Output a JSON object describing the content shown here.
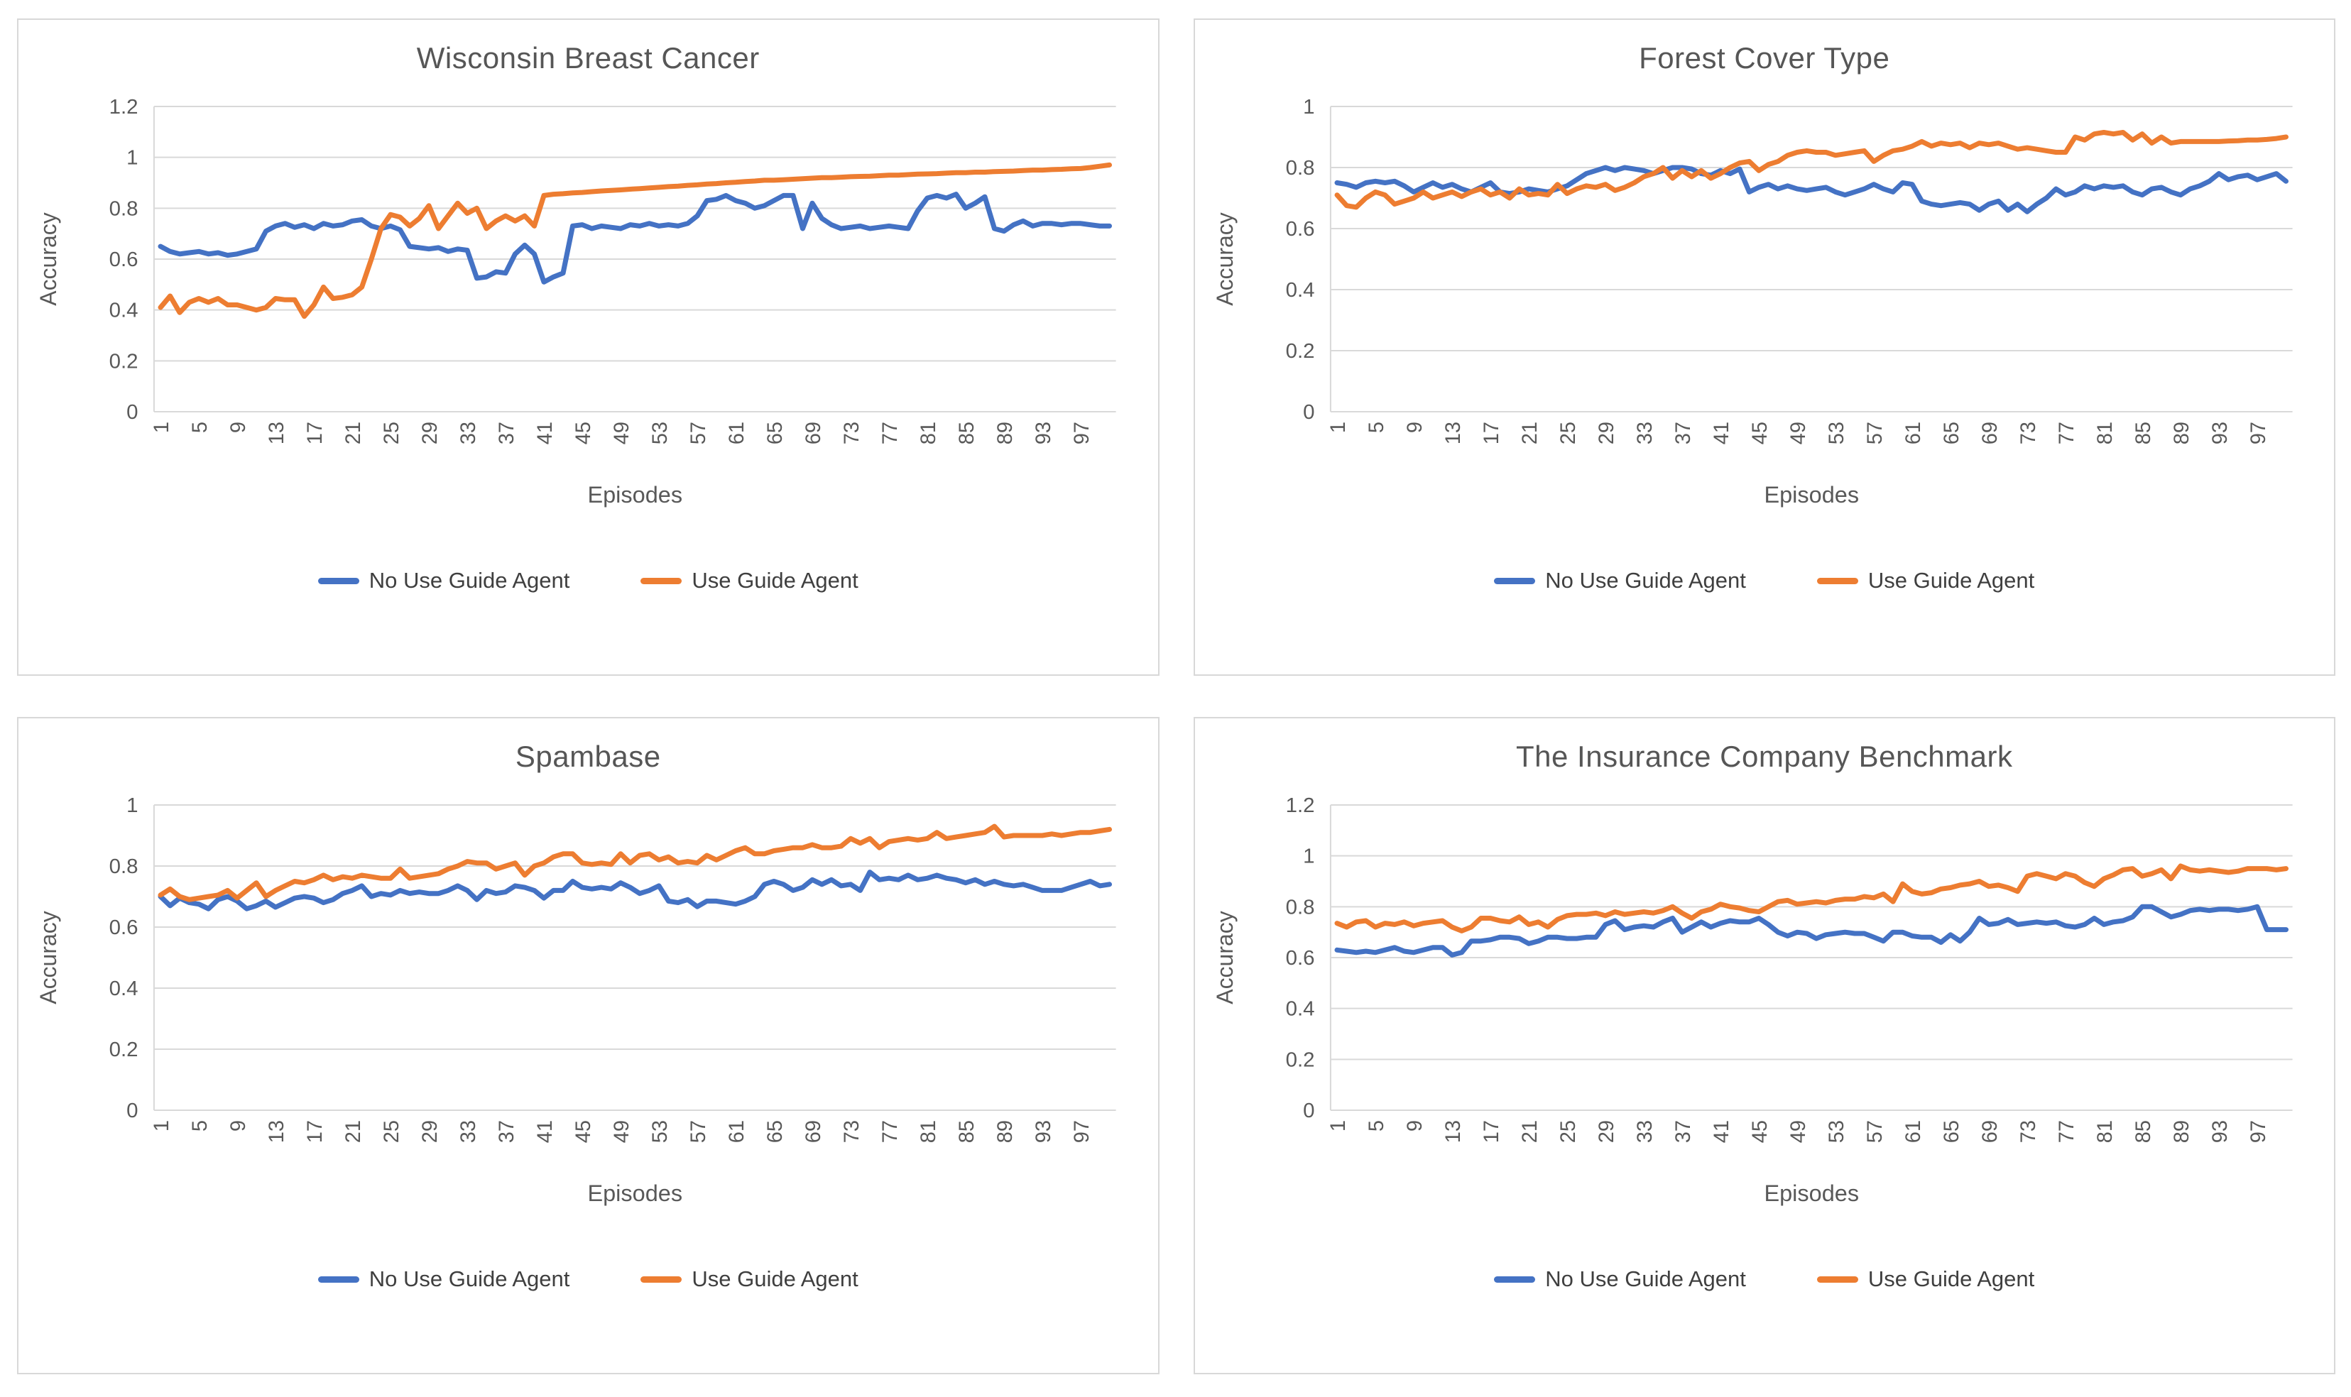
{
  "page": {
    "background": "#ffffff",
    "layout": "2x2-grid-of-line-charts",
    "accent_blue": "#4472C4",
    "accent_orange": "#ED7D31",
    "gridline_color": "#d9d9d9",
    "axis_text_color": "#595959"
  },
  "chart_data": [
    {
      "type": "line",
      "title": "Wisconsin Breast Cancer",
      "xlabel": "Episodes",
      "ylabel": "Accuracy",
      "ylim": [
        0,
        1.2
      ],
      "y_ticks": [
        "1.2",
        "1",
        "0.8",
        "0.6",
        "0.4",
        "0.2",
        "0"
      ],
      "x_ticks": [
        1,
        5,
        9,
        13,
        17,
        21,
        25,
        29,
        33,
        37,
        41,
        45,
        49,
        53,
        57,
        61,
        65,
        69,
        73,
        77,
        81,
        85,
        89,
        93,
        97
      ],
      "x_start": 1,
      "x_step": 1,
      "n_points": 100,
      "grid": true,
      "legend_position": "bottom",
      "series": [
        {
          "name": "No Use Guide Agent",
          "color": "#4472C4",
          "values": [
            0.65,
            0.63,
            0.62,
            0.625,
            0.63,
            0.62,
            0.625,
            0.615,
            0.62,
            0.63,
            0.64,
            0.71,
            0.73,
            0.74,
            0.725,
            0.735,
            0.72,
            0.74,
            0.73,
            0.735,
            0.75,
            0.755,
            0.73,
            0.72,
            0.73,
            0.715,
            0.65,
            0.645,
            0.64,
            0.645,
            0.63,
            0.64,
            0.635,
            0.525,
            0.53,
            0.55,
            0.545,
            0.62,
            0.655,
            0.62,
            0.51,
            0.53,
            0.545,
            0.73,
            0.735,
            0.72,
            0.73,
            0.725,
            0.72,
            0.735,
            0.73,
            0.74,
            0.73,
            0.735,
            0.73,
            0.74,
            0.77,
            0.83,
            0.835,
            0.85,
            0.83,
            0.82,
            0.8,
            0.81,
            0.83,
            0.85,
            0.85,
            0.72,
            0.82,
            0.76,
            0.735,
            0.72,
            0.725,
            0.73,
            0.72,
            0.725,
            0.73,
            0.725,
            0.72,
            0.79,
            0.84,
            0.85,
            0.84,
            0.855,
            0.8,
            0.82,
            0.845,
            0.72,
            0.71,
            0.735,
            0.75,
            0.73,
            0.74,
            0.74,
            0.735,
            0.74,
            0.74,
            0.735,
            0.73,
            0.73
          ]
        },
        {
          "name": "Use Guide Agent",
          "color": "#ED7D31",
          "values": [
            0.41,
            0.455,
            0.39,
            0.43,
            0.445,
            0.43,
            0.445,
            0.42,
            0.42,
            0.41,
            0.4,
            0.41,
            0.445,
            0.44,
            0.44,
            0.375,
            0.42,
            0.49,
            0.445,
            0.45,
            0.46,
            0.49,
            0.6,
            0.72,
            0.775,
            0.765,
            0.73,
            0.76,
            0.81,
            0.72,
            0.77,
            0.82,
            0.78,
            0.8,
            0.72,
            0.75,
            0.77,
            0.75,
            0.77,
            0.73,
            0.85,
            0.855,
            0.857,
            0.86,
            0.862,
            0.865,
            0.868,
            0.87,
            0.872,
            0.875,
            0.877,
            0.88,
            0.882,
            0.885,
            0.887,
            0.89,
            0.892,
            0.895,
            0.897,
            0.9,
            0.902,
            0.905,
            0.907,
            0.91,
            0.91,
            0.912,
            0.914,
            0.916,
            0.918,
            0.92,
            0.92,
            0.922,
            0.924,
            0.925,
            0.926,
            0.928,
            0.93,
            0.93,
            0.932,
            0.934,
            0.935,
            0.936,
            0.938,
            0.94,
            0.94,
            0.942,
            0.942,
            0.944,
            0.945,
            0.946,
            0.948,
            0.95,
            0.95,
            0.952,
            0.953,
            0.955,
            0.956,
            0.96,
            0.965,
            0.97
          ]
        }
      ]
    },
    {
      "type": "line",
      "title": "Forest Cover Type",
      "xlabel": "Episodes",
      "ylabel": "Accuracy",
      "ylim": [
        0,
        1.0
      ],
      "y_ticks": [
        "1",
        "0.8",
        "0.6",
        "0.4",
        "0.2",
        "0"
      ],
      "x_ticks": [
        1,
        5,
        9,
        13,
        17,
        21,
        25,
        29,
        33,
        37,
        41,
        45,
        49,
        53,
        57,
        61,
        65,
        69,
        73,
        77,
        81,
        85,
        89,
        93,
        97
      ],
      "x_start": 1,
      "x_step": 1,
      "n_points": 100,
      "grid": true,
      "legend_position": "bottom",
      "series": [
        {
          "name": "No Use Guide Agent",
          "color": "#4472C4",
          "values": [
            0.75,
            0.745,
            0.735,
            0.75,
            0.755,
            0.75,
            0.755,
            0.74,
            0.72,
            0.735,
            0.75,
            0.735,
            0.745,
            0.73,
            0.72,
            0.735,
            0.75,
            0.72,
            0.715,
            0.72,
            0.73,
            0.725,
            0.72,
            0.73,
            0.74,
            0.76,
            0.78,
            0.79,
            0.8,
            0.79,
            0.8,
            0.795,
            0.79,
            0.78,
            0.79,
            0.8,
            0.8,
            0.795,
            0.78,
            0.775,
            0.79,
            0.78,
            0.795,
            0.72,
            0.735,
            0.745,
            0.73,
            0.74,
            0.73,
            0.725,
            0.73,
            0.735,
            0.72,
            0.71,
            0.72,
            0.73,
            0.745,
            0.73,
            0.72,
            0.75,
            0.745,
            0.69,
            0.68,
            0.675,
            0.68,
            0.685,
            0.68,
            0.66,
            0.68,
            0.69,
            0.66,
            0.68,
            0.655,
            0.68,
            0.7,
            0.73,
            0.71,
            0.72,
            0.74,
            0.73,
            0.74,
            0.735,
            0.74,
            0.72,
            0.71,
            0.73,
            0.735,
            0.72,
            0.71,
            0.73,
            0.74,
            0.755,
            0.78,
            0.76,
            0.77,
            0.775,
            0.76,
            0.77,
            0.78,
            0.755
          ]
        },
        {
          "name": "Use Guide Agent",
          "color": "#ED7D31",
          "values": [
            0.71,
            0.675,
            0.67,
            0.7,
            0.72,
            0.71,
            0.68,
            0.69,
            0.7,
            0.72,
            0.7,
            0.71,
            0.72,
            0.705,
            0.72,
            0.73,
            0.71,
            0.72,
            0.7,
            0.73,
            0.71,
            0.715,
            0.71,
            0.745,
            0.715,
            0.73,
            0.74,
            0.735,
            0.745,
            0.725,
            0.735,
            0.75,
            0.77,
            0.78,
            0.8,
            0.765,
            0.79,
            0.77,
            0.79,
            0.765,
            0.78,
            0.8,
            0.815,
            0.82,
            0.79,
            0.81,
            0.82,
            0.84,
            0.85,
            0.855,
            0.85,
            0.85,
            0.84,
            0.845,
            0.85,
            0.855,
            0.82,
            0.84,
            0.855,
            0.86,
            0.87,
            0.885,
            0.87,
            0.88,
            0.875,
            0.88,
            0.865,
            0.88,
            0.875,
            0.88,
            0.87,
            0.86,
            0.865,
            0.86,
            0.855,
            0.85,
            0.85,
            0.9,
            0.89,
            0.91,
            0.915,
            0.91,
            0.915,
            0.89,
            0.91,
            0.88,
            0.9,
            0.88,
            0.885,
            0.885,
            0.885,
            0.885,
            0.885,
            0.887,
            0.888,
            0.89,
            0.89,
            0.892,
            0.895,
            0.9
          ]
        }
      ]
    },
    {
      "type": "line",
      "title": "Spambase",
      "xlabel": "Episodes",
      "ylabel": "Accuracy",
      "ylim": [
        0,
        1.0
      ],
      "y_ticks": [
        "1",
        "0.8",
        "0.6",
        "0.4",
        "0.2",
        "0"
      ],
      "x_ticks": [
        1,
        5,
        9,
        13,
        17,
        21,
        25,
        29,
        33,
        37,
        41,
        45,
        49,
        53,
        57,
        61,
        65,
        69,
        73,
        77,
        81,
        85,
        89,
        93,
        97
      ],
      "x_start": 1,
      "x_step": 1,
      "n_points": 100,
      "grid": true,
      "legend_position": "bottom",
      "series": [
        {
          "name": "No Use Guide Agent",
          "color": "#4472C4",
          "values": [
            0.7,
            0.67,
            0.695,
            0.68,
            0.675,
            0.66,
            0.69,
            0.7,
            0.685,
            0.66,
            0.67,
            0.685,
            0.665,
            0.68,
            0.695,
            0.7,
            0.695,
            0.68,
            0.69,
            0.71,
            0.72,
            0.735,
            0.7,
            0.71,
            0.705,
            0.72,
            0.71,
            0.715,
            0.71,
            0.71,
            0.72,
            0.735,
            0.72,
            0.69,
            0.72,
            0.71,
            0.715,
            0.735,
            0.73,
            0.72,
            0.695,
            0.72,
            0.72,
            0.75,
            0.73,
            0.725,
            0.73,
            0.725,
            0.745,
            0.73,
            0.71,
            0.72,
            0.735,
            0.685,
            0.68,
            0.69,
            0.667,
            0.685,
            0.685,
            0.68,
            0.675,
            0.685,
            0.7,
            0.74,
            0.75,
            0.74,
            0.72,
            0.73,
            0.755,
            0.74,
            0.755,
            0.735,
            0.74,
            0.72,
            0.78,
            0.755,
            0.76,
            0.755,
            0.77,
            0.755,
            0.76,
            0.77,
            0.76,
            0.755,
            0.745,
            0.755,
            0.74,
            0.75,
            0.74,
            0.735,
            0.74,
            0.73,
            0.72,
            0.72,
            0.72,
            0.73,
            0.74,
            0.75,
            0.735,
            0.74
          ]
        },
        {
          "name": "Use Guide Agent",
          "color": "#ED7D31",
          "values": [
            0.705,
            0.725,
            0.7,
            0.69,
            0.695,
            0.7,
            0.705,
            0.72,
            0.695,
            0.72,
            0.745,
            0.7,
            0.72,
            0.735,
            0.75,
            0.745,
            0.755,
            0.77,
            0.755,
            0.765,
            0.76,
            0.77,
            0.765,
            0.76,
            0.76,
            0.79,
            0.76,
            0.765,
            0.77,
            0.775,
            0.79,
            0.8,
            0.815,
            0.81,
            0.81,
            0.79,
            0.8,
            0.81,
            0.77,
            0.8,
            0.81,
            0.83,
            0.84,
            0.84,
            0.81,
            0.805,
            0.81,
            0.805,
            0.84,
            0.81,
            0.835,
            0.84,
            0.82,
            0.83,
            0.81,
            0.815,
            0.81,
            0.835,
            0.82,
            0.835,
            0.85,
            0.86,
            0.84,
            0.84,
            0.85,
            0.855,
            0.86,
            0.86,
            0.87,
            0.86,
            0.86,
            0.865,
            0.89,
            0.875,
            0.89,
            0.86,
            0.88,
            0.885,
            0.89,
            0.885,
            0.89,
            0.91,
            0.89,
            0.895,
            0.9,
            0.905,
            0.91,
            0.93,
            0.895,
            0.9,
            0.9,
            0.9,
            0.9,
            0.905,
            0.9,
            0.905,
            0.91,
            0.91,
            0.915,
            0.92
          ]
        }
      ]
    },
    {
      "type": "line",
      "title": "The Insurance Company Benchmark",
      "xlabel": "Episodes",
      "ylabel": "Accuracy",
      "ylim": [
        0,
        1.2
      ],
      "y_ticks": [
        "1.2",
        "1",
        "0.8",
        "0.6",
        "0.4",
        "0.2",
        "0"
      ],
      "x_ticks": [
        1,
        5,
        9,
        13,
        17,
        21,
        25,
        29,
        33,
        37,
        41,
        45,
        49,
        53,
        57,
        61,
        65,
        69,
        73,
        77,
        81,
        85,
        89,
        93,
        97
      ],
      "x_start": 1,
      "x_step": 1,
      "n_points": 100,
      "grid": true,
      "legend_position": "bottom",
      "series": [
        {
          "name": "No Use Guide Agent",
          "color": "#4472C4",
          "values": [
            0.63,
            0.625,
            0.62,
            0.625,
            0.62,
            0.63,
            0.64,
            0.625,
            0.62,
            0.63,
            0.64,
            0.64,
            0.61,
            0.62,
            0.665,
            0.665,
            0.67,
            0.68,
            0.68,
            0.675,
            0.655,
            0.665,
            0.68,
            0.68,
            0.675,
            0.675,
            0.68,
            0.68,
            0.73,
            0.745,
            0.71,
            0.72,
            0.725,
            0.72,
            0.74,
            0.755,
            0.7,
            0.72,
            0.74,
            0.72,
            0.735,
            0.745,
            0.74,
            0.74,
            0.755,
            0.73,
            0.7,
            0.685,
            0.7,
            0.695,
            0.675,
            0.69,
            0.695,
            0.7,
            0.695,
            0.695,
            0.68,
            0.665,
            0.7,
            0.7,
            0.685,
            0.68,
            0.68,
            0.66,
            0.69,
            0.665,
            0.7,
            0.755,
            0.73,
            0.735,
            0.75,
            0.73,
            0.735,
            0.74,
            0.735,
            0.74,
            0.725,
            0.72,
            0.73,
            0.755,
            0.73,
            0.74,
            0.745,
            0.76,
            0.8,
            0.8,
            0.78,
            0.76,
            0.77,
            0.785,
            0.79,
            0.785,
            0.79,
            0.79,
            0.785,
            0.79,
            0.8,
            0.71,
            0.71,
            0.71
          ]
        },
        {
          "name": "Use Guide Agent",
          "color": "#ED7D31",
          "values": [
            0.735,
            0.72,
            0.74,
            0.745,
            0.72,
            0.735,
            0.73,
            0.74,
            0.725,
            0.735,
            0.74,
            0.745,
            0.72,
            0.705,
            0.72,
            0.755,
            0.755,
            0.745,
            0.74,
            0.76,
            0.73,
            0.74,
            0.72,
            0.75,
            0.765,
            0.77,
            0.77,
            0.775,
            0.765,
            0.78,
            0.77,
            0.775,
            0.78,
            0.775,
            0.785,
            0.8,
            0.775,
            0.755,
            0.78,
            0.79,
            0.81,
            0.8,
            0.795,
            0.785,
            0.78,
            0.8,
            0.82,
            0.825,
            0.81,
            0.815,
            0.82,
            0.815,
            0.825,
            0.83,
            0.83,
            0.84,
            0.835,
            0.85,
            0.82,
            0.89,
            0.86,
            0.85,
            0.855,
            0.87,
            0.875,
            0.885,
            0.89,
            0.9,
            0.88,
            0.885,
            0.875,
            0.86,
            0.92,
            0.93,
            0.92,
            0.91,
            0.93,
            0.92,
            0.895,
            0.88,
            0.91,
            0.925,
            0.945,
            0.95,
            0.92,
            0.93,
            0.945,
            0.91,
            0.96,
            0.945,
            0.94,
            0.945,
            0.94,
            0.935,
            0.94,
            0.95,
            0.95,
            0.95,
            0.945,
            0.95
          ]
        }
      ]
    }
  ]
}
